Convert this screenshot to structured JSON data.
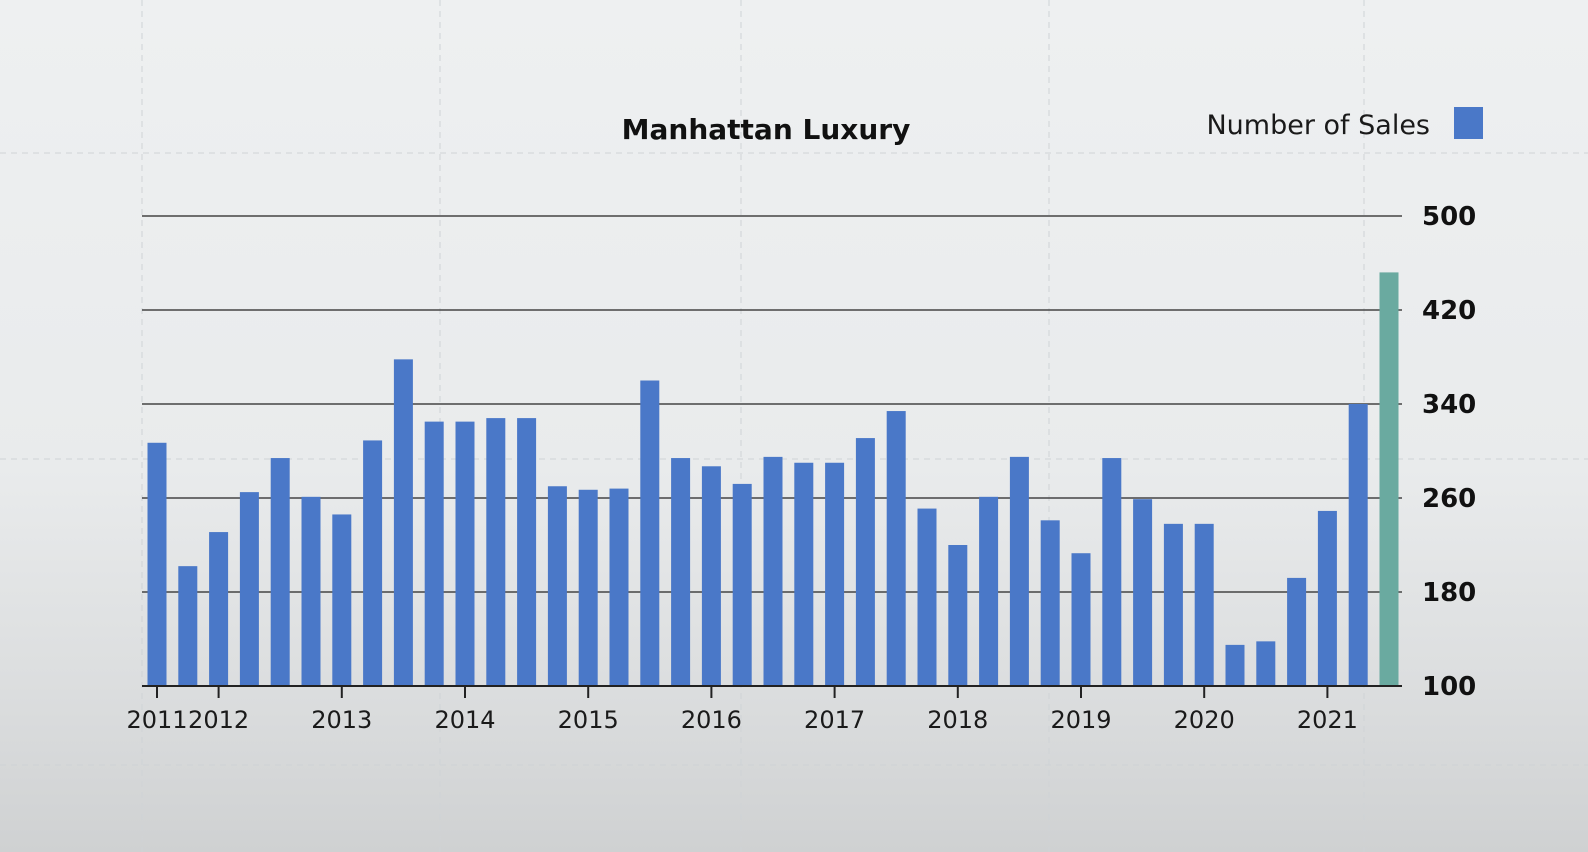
{
  "chart_data": {
    "type": "bar",
    "title": "Manhattan Luxury",
    "legend": {
      "label": "Number of Sales",
      "position": "top-right"
    },
    "colors": {
      "bar": "#4a78c8",
      "highlight": "#6aaaa0",
      "grid": "#444444",
      "text": "#111111"
    },
    "ylim": [
      100,
      500
    ],
    "yticks": [
      "500",
      "420",
      "340",
      "260",
      "180",
      "100"
    ],
    "xticks": [
      "2011",
      "2012",
      "2013",
      "2014",
      "2015",
      "2016",
      "2017",
      "2018",
      "2019",
      "2020",
      "2021"
    ],
    "grid": true,
    "series": [
      {
        "values": [
          307,
          202,
          231,
          265,
          294,
          261,
          246,
          309,
          378,
          325,
          325,
          328,
          328,
          270,
          267,
          268,
          360,
          294,
          287,
          272,
          295,
          290,
          290,
          311,
          334,
          251,
          220,
          261,
          295,
          241,
          213,
          294,
          259,
          238,
          238,
          135,
          138,
          192,
          249,
          340,
          452
        ]
      }
    ],
    "highlight_index": 40
  }
}
